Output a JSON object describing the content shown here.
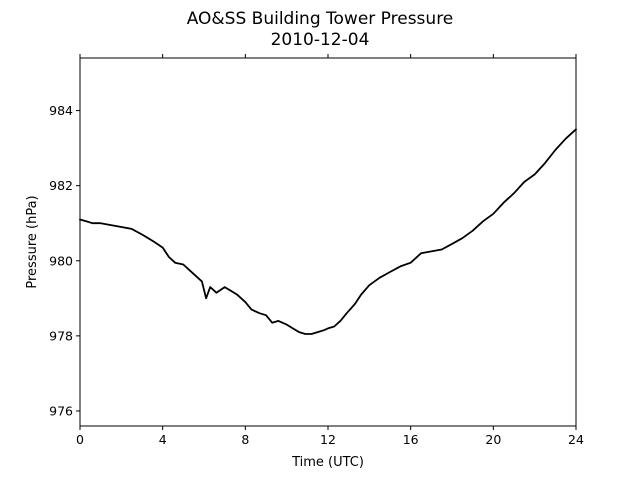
{
  "chart_data": {
    "type": "line",
    "title": "AO&SS Building Tower Pressure",
    "subtitle": "2010-12-04",
    "xlabel": "Time (UTC)",
    "ylabel": "Pressure (hPa)",
    "xlim": [
      0,
      24
    ],
    "ylim": [
      975.6,
      985.4
    ],
    "xticks": [
      0,
      4,
      8,
      12,
      16,
      20,
      24
    ],
    "yticks": [
      976,
      978,
      980,
      982,
      984
    ],
    "grid": false,
    "series": [
      {
        "color": "#000000",
        "x": [
          0,
          0.3,
          0.6,
          1.0,
          1.5,
          2.0,
          2.5,
          3.0,
          3.3,
          3.6,
          4.0,
          4.3,
          4.6,
          5.0,
          5.3,
          5.6,
          5.9,
          6.1,
          6.3,
          6.6,
          7.0,
          7.3,
          7.6,
          8.0,
          8.3,
          8.7,
          9.0,
          9.3,
          9.6,
          10.0,
          10.3,
          10.6,
          10.9,
          11.2,
          11.5,
          11.8,
          12.0,
          12.3,
          12.6,
          12.9,
          13.3,
          13.6,
          14.0,
          14.5,
          15.0,
          15.5,
          16.0,
          16.5,
          17.0,
          17.5,
          18.0,
          18.5,
          19.0,
          19.5,
          20.0,
          20.5,
          21.0,
          21.5,
          22.0,
          22.5,
          23.0,
          23.5,
          24.0
        ],
        "y": [
          981.1,
          981.05,
          981.0,
          981.0,
          980.95,
          980.9,
          980.85,
          980.7,
          980.6,
          980.5,
          980.35,
          980.1,
          979.95,
          979.9,
          979.75,
          979.6,
          979.45,
          979.0,
          979.3,
          979.15,
          979.3,
          979.2,
          979.1,
          978.9,
          978.7,
          978.6,
          978.55,
          978.35,
          978.4,
          978.3,
          978.2,
          978.1,
          978.05,
          978.05,
          978.1,
          978.15,
          978.2,
          978.25,
          978.4,
          978.6,
          978.85,
          979.1,
          979.35,
          979.55,
          979.7,
          979.85,
          979.95,
          980.2,
          980.25,
          980.3,
          980.45,
          980.6,
          980.8,
          981.05,
          981.25,
          981.55,
          981.8,
          982.1,
          982.3,
          982.6,
          982.95,
          983.25,
          983.5
        ]
      }
    ]
  }
}
